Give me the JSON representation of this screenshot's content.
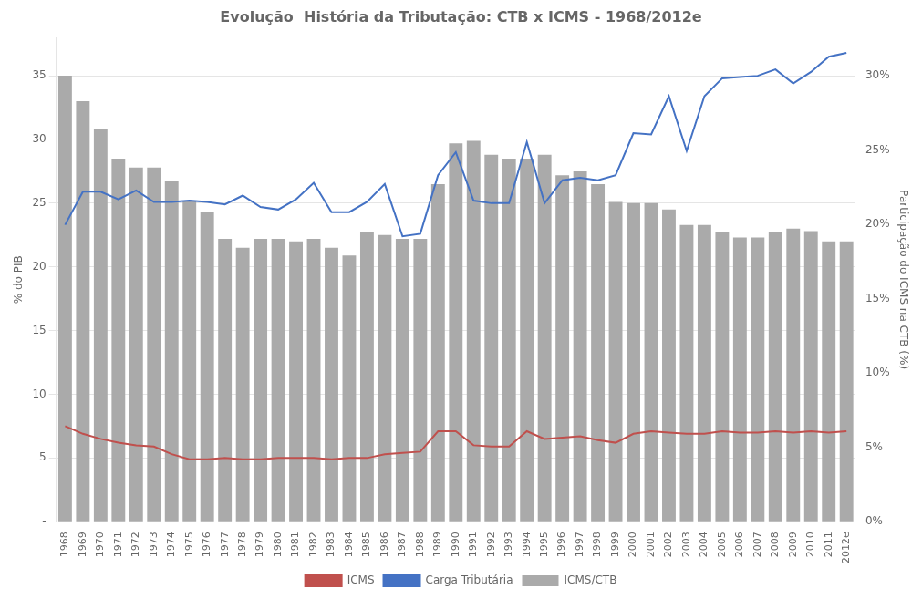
{
  "chart_data": {
    "type": "bar",
    "title": "Evolução  História da Tributação: CTB x ICMS - 1968/2012e",
    "ylabel": "% do PIB",
    "y2label": "Participação do ICMS na CTB (%)",
    "categories": [
      "1968",
      "1969",
      "1970",
      "1971",
      "1972",
      "1973",
      "1974",
      "1975",
      "1976",
      "1977",
      "1978",
      "1979",
      "1980",
      "1981",
      "1982",
      "1983",
      "1984",
      "1985",
      "1986",
      "1987",
      "1988",
      "1989",
      "1990",
      "1991",
      "1992",
      "1993",
      "1994",
      "1995",
      "1996",
      "1997",
      "1998",
      "1999",
      "2000",
      "2001",
      "2002",
      "2003",
      "2004",
      "2005",
      "2006",
      "2007",
      "2008",
      "2009",
      "2010",
      "2011",
      "2012e"
    ],
    "series": [
      {
        "name": "ICMS/CTB",
        "type": "bar",
        "color": "#AAAAAA",
        "values": [
          35.0,
          33.0,
          30.8,
          28.5,
          27.8,
          27.8,
          26.7,
          25.2,
          24.3,
          22.2,
          21.5,
          22.2,
          22.2,
          22.0,
          22.2,
          21.5,
          20.9,
          22.7,
          22.5,
          22.2,
          22.2,
          26.5,
          29.7,
          29.9,
          28.8,
          28.5,
          28.5,
          28.8,
          27.2,
          27.5,
          26.5,
          25.1,
          25.0,
          25.0,
          24.5,
          23.3,
          23.3,
          22.7,
          22.3,
          22.3,
          22.7,
          23.0,
          22.8,
          22.0,
          22.0
        ]
      },
      {
        "name": "Carga Tributária",
        "type": "line",
        "color": "#4472C4",
        "values": [
          23.3,
          25.9,
          25.9,
          25.3,
          26.0,
          25.1,
          25.1,
          25.2,
          25.1,
          24.9,
          25.6,
          24.7,
          24.5,
          25.3,
          26.6,
          24.3,
          24.3,
          25.1,
          26.5,
          22.4,
          22.6,
          27.2,
          29.0,
          25.2,
          25.0,
          25.0,
          29.8,
          25.0,
          26.8,
          27.0,
          26.8,
          27.2,
          30.5,
          30.4,
          33.4,
          29.1,
          33.4,
          34.8,
          34.9,
          35.0,
          35.5,
          34.4,
          35.3,
          36.5,
          36.8
        ]
      },
      {
        "name": "ICMS",
        "type": "line",
        "color": "#C0504D",
        "values": [
          7.5,
          6.9,
          6.5,
          6.2,
          6.0,
          5.9,
          5.3,
          4.9,
          4.9,
          5.0,
          4.9,
          4.9,
          5.0,
          5.0,
          5.0,
          4.9,
          5.0,
          5.0,
          5.3,
          5.4,
          5.5,
          7.1,
          7.1,
          6.0,
          5.9,
          5.9,
          7.1,
          6.5,
          6.6,
          6.7,
          6.4,
          6.2,
          6.9,
          7.1,
          7.0,
          6.9,
          6.9,
          7.1,
          7.0,
          7.0,
          7.1,
          7.0,
          7.1,
          7.0,
          7.1
        ]
      }
    ],
    "ylim": [
      0,
      38
    ],
    "yticks": [
      {
        "value": 0,
        "label": "-"
      },
      5,
      10,
      15,
      20,
      25,
      30,
      35
    ],
    "y2lim": [
      0,
      0.3257142857142857
    ],
    "y2ticks": [
      {
        "value": 0.0,
        "label": "0%"
      },
      {
        "value": 0.05,
        "label": "5%"
      },
      {
        "value": 0.1,
        "label": "10%"
      },
      {
        "value": 0.15,
        "label": "15%"
      },
      {
        "value": 0.2,
        "label": "20%"
      },
      {
        "value": 0.25,
        "label": "25%"
      },
      {
        "value": 0.3,
        "label": "30%"
      }
    ],
    "grid": true,
    "legend": "bottom"
  }
}
